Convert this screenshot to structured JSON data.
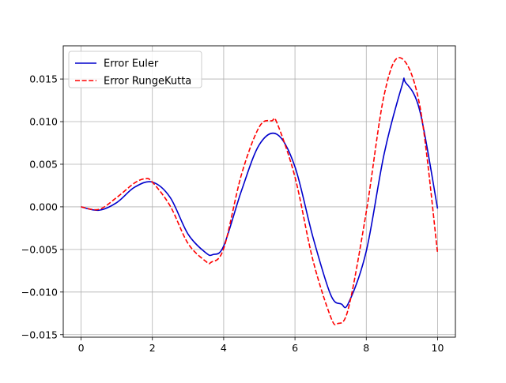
{
  "chart_data": {
    "type": "line",
    "title": "",
    "xlabel": "",
    "ylabel": "",
    "xlim": [
      -0.5,
      10.5
    ],
    "ylim": [
      -0.0153,
      0.0189
    ],
    "grid": true,
    "legend_position": "upper-left",
    "xticks": [
      0,
      2,
      4,
      6,
      8,
      10
    ],
    "yticks": [
      -0.015,
      -0.01,
      -0.005,
      0.0,
      0.005,
      0.01,
      0.015
    ],
    "xtick_labels": [
      "0",
      "2",
      "4",
      "6",
      "8",
      "10"
    ],
    "ytick_labels": [
      "−0.015",
      "−0.010",
      "−0.005",
      "0.000",
      "0.005",
      "0.010",
      "0.015"
    ],
    "series": [
      {
        "name": "Error Euler",
        "color": "#0000cc",
        "style": "solid",
        "x": [
          0.0,
          0.5,
          1.0,
          1.5,
          2.0,
          2.5,
          3.0,
          3.5,
          3.7,
          4.0,
          4.5,
          5.0,
          5.5,
          6.0,
          6.5,
          7.0,
          7.3,
          7.5,
          8.0,
          8.5,
          9.0,
          9.1,
          9.5,
          10.0
        ],
        "y": [
          0.0,
          -0.0004,
          0.0005,
          0.0023,
          0.0029,
          0.0011,
          -0.0032,
          -0.0054,
          -0.0056,
          -0.0046,
          0.0019,
          0.0073,
          0.0085,
          0.0047,
          -0.0035,
          -0.0103,
          -0.0114,
          -0.0113,
          -0.0052,
          0.0062,
          0.0142,
          0.0146,
          0.0113,
          -0.0002
        ]
      },
      {
        "name": "Error RungeKutta",
        "color": "#ff0000",
        "style": "dashed",
        "x": [
          0.0,
          0.5,
          1.0,
          1.5,
          1.8,
          2.0,
          2.5,
          3.0,
          3.5,
          3.65,
          4.0,
          4.5,
          5.0,
          5.35,
          5.5,
          6.0,
          6.5,
          7.0,
          7.2,
          7.5,
          8.0,
          8.5,
          8.95,
          9.5,
          10.0
        ],
        "y": [
          0.0,
          -0.0003,
          0.0011,
          0.0028,
          0.0033,
          0.0029,
          0.0001,
          -0.0043,
          -0.0064,
          -0.0065,
          -0.0049,
          0.0038,
          0.0094,
          0.0101,
          0.0098,
          0.0035,
          -0.0062,
          -0.0129,
          -0.0137,
          -0.0119,
          -0.0006,
          0.0131,
          0.0175,
          0.0119,
          -0.0054
        ]
      }
    ]
  }
}
